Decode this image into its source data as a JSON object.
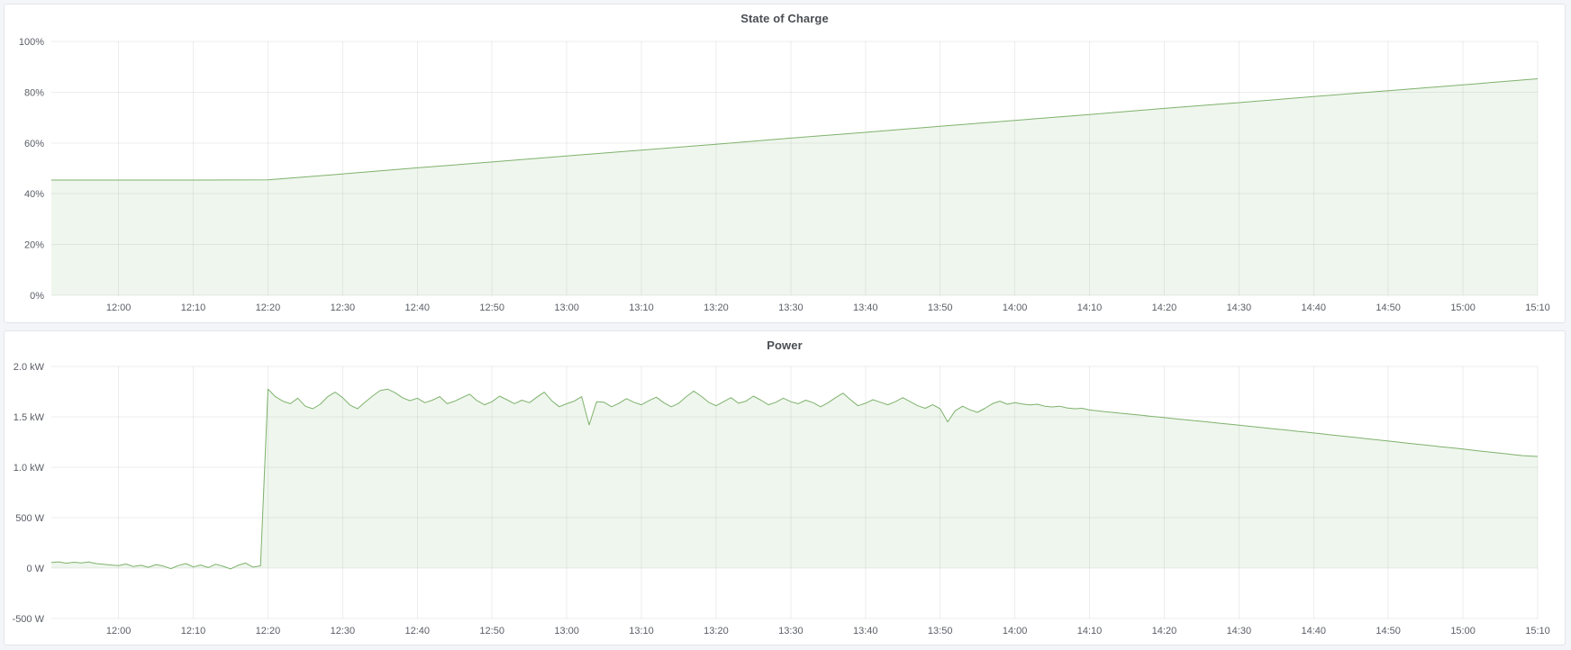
{
  "colors": {
    "page_background": "#f4f5f9",
    "panel_background": "#ffffff",
    "panel_border": "#e2e5e9",
    "series_green": "#7EB26D",
    "grid_line": "rgba(0,0,0,0.07)",
    "tick_text": "#5a5e66",
    "title_text": "#4a4e54"
  },
  "chart_data": [
    {
      "type": "area",
      "title": "State of Charge",
      "ylabel": "",
      "xlabel": "",
      "legend": "none",
      "grid": true,
      "fill_opacity": 0.12,
      "x_axis": {
        "domain_minutes": [
          -9,
          190
        ],
        "tick_minutes": [
          0,
          10,
          20,
          30,
          40,
          50,
          60,
          70,
          80,
          90,
          100,
          110,
          120,
          130,
          140,
          150,
          160,
          170,
          180,
          190
        ],
        "tick_labels": [
          "12:00",
          "12:10",
          "12:20",
          "12:30",
          "12:40",
          "12:50",
          "13:00",
          "13:10",
          "13:20",
          "13:30",
          "13:40",
          "13:50",
          "14:00",
          "14:10",
          "14:20",
          "14:30",
          "14:40",
          "14:50",
          "15:00",
          "15:10"
        ]
      },
      "y_axis": {
        "domain": [
          0,
          100
        ],
        "ticks": [
          {
            "value": 0,
            "label": "0%"
          },
          {
            "value": 20,
            "label": "20%"
          },
          {
            "value": 40,
            "label": "40%"
          },
          {
            "value": 60,
            "label": "60%"
          },
          {
            "value": 80,
            "label": "80%"
          },
          {
            "value": 100,
            "label": "100%"
          }
        ]
      },
      "series": [
        {
          "name": "State of Charge",
          "color": "#7EB26D",
          "x_minutes": [
            -9,
            0,
            10,
            20,
            30,
            40,
            50,
            60,
            70,
            80,
            90,
            100,
            110,
            120,
            130,
            140,
            150,
            160,
            170,
            180,
            190
          ],
          "values": [
            45.4,
            45.4,
            45.4,
            45.5,
            47.8,
            50.2,
            52.5,
            54.9,
            57.2,
            59.5,
            61.9,
            64.2,
            66.6,
            68.9,
            71.2,
            73.6,
            75.9,
            78.3,
            80.6,
            82.9,
            85.3
          ]
        }
      ]
    },
    {
      "type": "area",
      "title": "Power",
      "ylabel": "",
      "xlabel": "",
      "legend": "none",
      "grid": true,
      "fill_opacity": 0.12,
      "x_axis": {
        "domain_minutes": [
          -9,
          190
        ],
        "tick_minutes": [
          0,
          10,
          20,
          30,
          40,
          50,
          60,
          70,
          80,
          90,
          100,
          110,
          120,
          130,
          140,
          150,
          160,
          170,
          180,
          190
        ],
        "tick_labels": [
          "12:00",
          "12:10",
          "12:20",
          "12:30",
          "12:40",
          "12:50",
          "13:00",
          "13:10",
          "13:20",
          "13:30",
          "13:40",
          "13:50",
          "14:00",
          "14:10",
          "14:20",
          "14:30",
          "14:40",
          "14:50",
          "15:00",
          "15:10"
        ]
      },
      "y_axis": {
        "domain": [
          -500,
          2000
        ],
        "ticks": [
          {
            "value": -500,
            "label": "-500 W"
          },
          {
            "value": 0,
            "label": "0 W"
          },
          {
            "value": 500,
            "label": "500 W"
          },
          {
            "value": 1000,
            "label": "1.0 kW"
          },
          {
            "value": 1500,
            "label": "1.5 kW"
          },
          {
            "value": 2000,
            "label": "2.0 kW"
          }
        ]
      },
      "series": [
        {
          "name": "Power",
          "color": "#7EB26D",
          "x_start_minute": -9,
          "x_step_minute": 1,
          "values": [
            55,
            62,
            48,
            58,
            52,
            60,
            45,
            38,
            30,
            25,
            40,
            15,
            28,
            8,
            35,
            20,
            -5,
            25,
            45,
            12,
            30,
            5,
            38,
            18,
            -8,
            28,
            50,
            10,
            22,
            1775,
            1700,
            1655,
            1630,
            1685,
            1605,
            1580,
            1625,
            1700,
            1745,
            1690,
            1615,
            1580,
            1645,
            1705,
            1760,
            1775,
            1740,
            1690,
            1660,
            1685,
            1640,
            1665,
            1700,
            1630,
            1655,
            1690,
            1725,
            1660,
            1620,
            1650,
            1705,
            1670,
            1630,
            1665,
            1640,
            1695,
            1745,
            1660,
            1600,
            1630,
            1655,
            1700,
            1420,
            1650,
            1645,
            1600,
            1635,
            1680,
            1645,
            1620,
            1660,
            1695,
            1640,
            1600,
            1635,
            1700,
            1755,
            1705,
            1645,
            1610,
            1650,
            1690,
            1635,
            1655,
            1705,
            1665,
            1620,
            1645,
            1685,
            1650,
            1630,
            1665,
            1640,
            1600,
            1640,
            1690,
            1735,
            1670,
            1610,
            1635,
            1670,
            1645,
            1620,
            1650,
            1690,
            1650,
            1610,
            1585,
            1620,
            1580,
            1450,
            1560,
            1605,
            1570,
            1545,
            1585,
            1630,
            1655,
            1625,
            1640,
            1628,
            1618,
            1625,
            1605,
            1598,
            1605,
            1588,
            1580,
            1585,
            1568,
            1560,
            1552,
            1545,
            1537,
            1530,
            1522,
            1515,
            1507,
            1500,
            1492,
            1485,
            1477,
            1470,
            1462,
            1455,
            1447,
            1440,
            1432,
            1425,
            1417,
            1410,
            1402,
            1394,
            1387,
            1379,
            1371,
            1363,
            1355,
            1348,
            1340,
            1332,
            1324,
            1316,
            1308,
            1300,
            1292,
            1284,
            1276,
            1268,
            1260,
            1252,
            1244,
            1236,
            1228,
            1220,
            1212,
            1204,
            1196,
            1188,
            1180,
            1172,
            1163,
            1155,
            1147,
            1139,
            1131,
            1123,
            1115,
            1111,
            1107
          ]
        }
      ]
    }
  ]
}
